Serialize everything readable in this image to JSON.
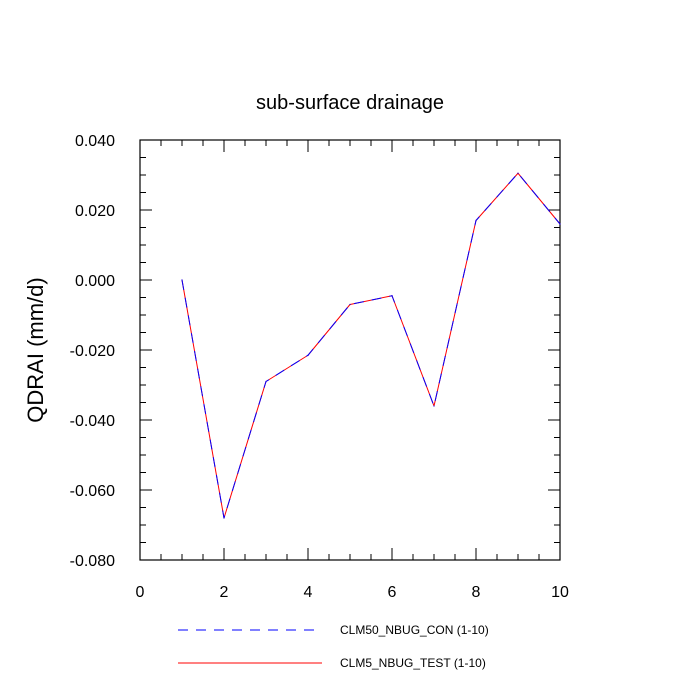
{
  "chart_data": {
    "type": "line",
    "title": "sub-surface drainage",
    "xlabel": "",
    "ylabel": "QDRAI  (mm/d)",
    "xlim": [
      0,
      10
    ],
    "ylim": [
      -0.08,
      0.04
    ],
    "x_ticks": [
      0,
      2,
      4,
      6,
      8,
      10
    ],
    "x_tick_labels": [
      "0",
      "2",
      "4",
      "6",
      "8",
      "10"
    ],
    "y_ticks": [
      0.04,
      0.02,
      0.0,
      -0.02,
      -0.04,
      -0.06,
      -0.08
    ],
    "y_tick_labels": [
      "0.040",
      "0.020",
      "0.000",
      "-0.020",
      "-0.040",
      "-0.060",
      "-0.080"
    ],
    "grid": false,
    "legend_position": "bottom",
    "x": [
      1,
      2,
      3,
      4,
      5,
      6,
      7,
      8,
      9,
      10
    ],
    "series": [
      {
        "name": "CLM50_NBUG_CON (1-10)",
        "color": "#0000ff",
        "dash": "dashed",
        "values": [
          0.0,
          -0.068,
          -0.029,
          -0.0215,
          -0.007,
          -0.0045,
          -0.036,
          0.017,
          0.0305,
          0.016
        ]
      },
      {
        "name": "CLM5_NBUG_TEST (1-10)",
        "color": "#ff0000",
        "dash": "solid",
        "values": [
          0.0,
          -0.068,
          -0.029,
          -0.0215,
          -0.007,
          -0.0045,
          -0.036,
          0.017,
          0.0305,
          0.016
        ]
      }
    ]
  }
}
